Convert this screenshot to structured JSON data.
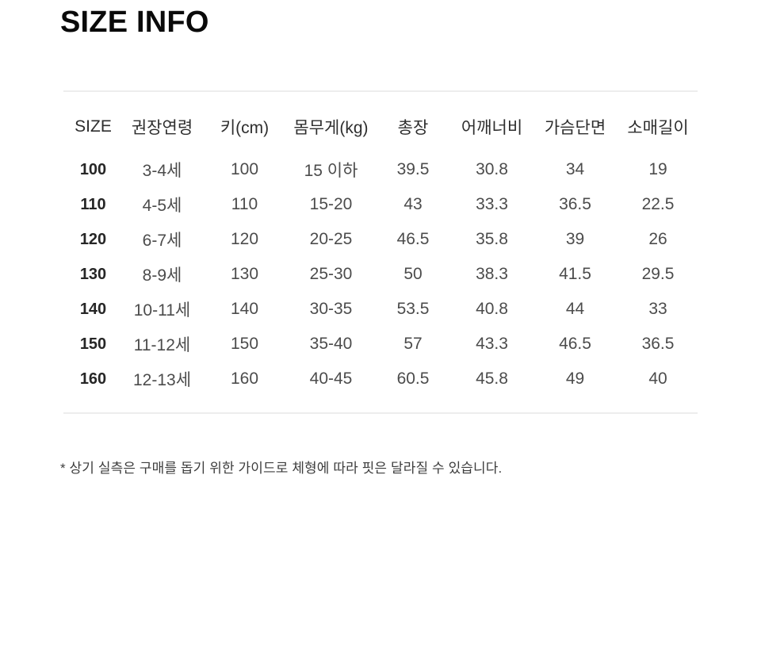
{
  "title": "SIZE INFO",
  "size_table": {
    "columns": [
      "SIZE",
      "권장연령",
      "키(cm)",
      "몸무게(kg)",
      "총장",
      "어깨너비",
      "가슴단면",
      "소매길이"
    ],
    "rows": [
      [
        "100",
        "3-4세",
        "100",
        "15 이하",
        "39.5",
        "30.8",
        "34",
        "19"
      ],
      [
        "110",
        "4-5세",
        "110",
        "15-20",
        "43",
        "33.3",
        "36.5",
        "22.5"
      ],
      [
        "120",
        "6-7세",
        "120",
        "20-25",
        "46.5",
        "35.8",
        "39",
        "26"
      ],
      [
        "130",
        "8-9세",
        "130",
        "25-30",
        "50",
        "38.3",
        "41.5",
        "29.5"
      ],
      [
        "140",
        "10-11세",
        "140",
        "30-35",
        "53.5",
        "40.8",
        "44",
        "33"
      ],
      [
        "150",
        "11-12세",
        "150",
        "35-40",
        "57",
        "43.3",
        "46.5",
        "36.5"
      ],
      [
        "160",
        "12-13세",
        "160",
        "40-45",
        "60.5",
        "45.8",
        "49",
        "40"
      ]
    ]
  },
  "note": "* 상기 실측은 구매를 돕기 위한 가이드로 체형에 따라 핏은 달라질 수 있습니다.",
  "colors": {
    "background": "#ffffff",
    "title_text": "#0a0a0a",
    "header_text": "#2e2e2e",
    "body_text": "#4c4c4c",
    "size_column_text": "#262626",
    "divider": "#ededed"
  }
}
